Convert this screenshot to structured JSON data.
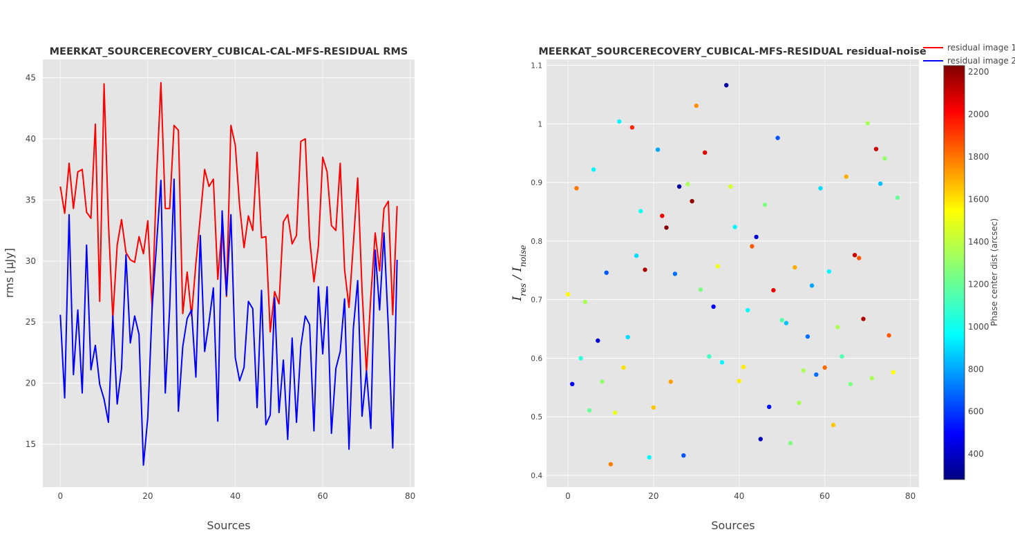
{
  "colors": {
    "series1": "#ff0000",
    "series2": "#0000ff",
    "plot_bg": "#e5e5e5",
    "grid": "#ffffff"
  },
  "legend": [
    "residual image 1",
    "residual image 2"
  ],
  "colorbar": {
    "title": "Phase center dist (arcsec)",
    "ticks": [
      "400",
      "600",
      "800",
      "1000",
      "1200",
      "1400",
      "1600",
      "1800",
      "2000",
      "2200"
    ]
  },
  "chart_data": [
    {
      "type": "line",
      "title": "MEERKAT_SOURCERECOVERY_CUBICAL-CAL-MFS-RESIDUAL RMS",
      "xlabel": "Sources",
      "ylabel": "rms [µJy]",
      "xlim": [
        -4,
        81
      ],
      "ylim": [
        11.5,
        46.5
      ],
      "xticks": [
        "0",
        "20",
        "40",
        "60",
        "80"
      ],
      "yticks": [
        "15",
        "20",
        "25",
        "30",
        "35",
        "40",
        "45"
      ],
      "grid": true,
      "x": [
        0,
        1,
        2,
        3,
        4,
        5,
        6,
        7,
        8,
        9,
        10,
        11,
        12,
        13,
        14,
        15,
        16,
        17,
        18,
        19,
        20,
        21,
        22,
        23,
        24,
        25,
        26,
        27,
        28,
        29,
        30,
        31,
        32,
        33,
        34,
        35,
        36,
        37,
        38,
        39,
        40,
        41,
        42,
        43,
        44,
        45,
        46,
        47,
        48,
        49,
        50,
        51,
        52,
        53,
        54,
        55,
        56,
        57,
        58,
        59,
        60,
        61,
        62,
        63,
        64,
        65,
        66,
        67,
        68,
        69,
        70,
        71,
        72,
        73,
        74,
        75,
        76,
        77
      ],
      "series": [
        {
          "name": "residual image 1",
          "values": [
            36.1,
            33.9,
            38.0,
            34.3,
            37.3,
            37.5,
            34.0,
            33.5,
            41.2,
            26.7,
            44.5,
            33.2,
            25.3,
            31.3,
            33.4,
            30.7,
            30.1,
            29.9,
            32.0,
            30.6,
            33.3,
            26.1,
            36.8,
            44.6,
            34.3,
            34.3,
            41.1,
            40.7,
            25.7,
            29.1,
            25.5,
            29.8,
            33.6,
            37.5,
            36.1,
            36.7,
            28.5,
            32.9,
            27.1,
            41.1,
            39.5,
            34.5,
            31.1,
            33.7,
            32.5,
            38.9,
            31.9,
            32.0,
            24.2,
            27.5,
            26.5,
            33.2,
            33.8,
            31.4,
            32.1,
            39.8,
            40.0,
            31.9,
            28.3,
            31.2,
            38.5,
            37.3,
            32.9,
            32.5,
            38.0,
            29.3,
            26.2,
            31.4,
            36.8,
            27.6,
            20.9,
            27.1,
            32.3,
            29.2,
            34.3,
            34.9,
            25.6,
            34.5
          ]
        },
        {
          "name": "residual image 2",
          "values": [
            25.6,
            18.8,
            33.8,
            20.7,
            26.0,
            19.2,
            31.3,
            21.1,
            23.1,
            19.9,
            18.7,
            16.8,
            25.5,
            18.3,
            21.2,
            30.5,
            23.3,
            25.5,
            24.0,
            13.3,
            17.2,
            26.2,
            31.4,
            36.6,
            19.2,
            26.2,
            36.7,
            17.7,
            23.0,
            25.3,
            26.0,
            20.5,
            32.1,
            22.6,
            25.0,
            27.8,
            16.9,
            34.1,
            27.2,
            33.8,
            22.1,
            20.2,
            21.3,
            26.7,
            26.1,
            18.0,
            27.6,
            16.6,
            17.4,
            27.0,
            17.6,
            21.9,
            15.4,
            23.7,
            16.8,
            23.0,
            25.5,
            24.8,
            16.1,
            27.9,
            22.4,
            27.9,
            15.9,
            21.2,
            22.6,
            26.9,
            14.6,
            24.5,
            28.4,
            17.3,
            21.0,
            16.3,
            30.9,
            26.0,
            32.3,
            24.6,
            14.7,
            30.1
          ]
        }
      ]
    },
    {
      "type": "scatter",
      "title": "MEERKAT_SOURCERECOVERY_CUBICAL-MFS-RESIDUAL residual-noise",
      "xlabel": "Sources",
      "ylabel": "I_res / I_noise",
      "xlim": [
        -5,
        82
      ],
      "ylim": [
        0.38,
        1.11
      ],
      "xticks": [
        "0",
        "20",
        "40",
        "60",
        "80"
      ],
      "yticks": [
        "0.4",
        "0.5",
        "0.6",
        "0.7",
        "0.8",
        "0.9",
        "1",
        "1.1"
      ],
      "grid": true,
      "color_scale": {
        "type": "jet",
        "cmin": 280,
        "cmax": 2230,
        "label": "Phase center dist (arcsec)"
      },
      "points": [
        {
          "x": 0,
          "y": 0.709,
          "c": 1560
        },
        {
          "x": 1,
          "y": 0.556,
          "c": 500
        },
        {
          "x": 2,
          "y": 0.89,
          "c": 1800
        },
        {
          "x": 3,
          "y": 0.6,
          "c": 1050
        },
        {
          "x": 4,
          "y": 0.696,
          "c": 1350
        },
        {
          "x": 5,
          "y": 0.511,
          "c": 1200
        },
        {
          "x": 6,
          "y": 0.922,
          "c": 950
        },
        {
          "x": 7,
          "y": 0.63,
          "c": 420
        },
        {
          "x": 8,
          "y": 0.56,
          "c": 1300
        },
        {
          "x": 9,
          "y": 0.746,
          "c": 650
        },
        {
          "x": 10,
          "y": 0.419,
          "c": 1780
        },
        {
          "x": 11,
          "y": 0.507,
          "c": 1500
        },
        {
          "x": 12,
          "y": 1.004,
          "c": 950
        },
        {
          "x": 13,
          "y": 0.584,
          "c": 1600
        },
        {
          "x": 14,
          "y": 0.636,
          "c": 900
        },
        {
          "x": 15,
          "y": 0.994,
          "c": 1950
        },
        {
          "x": 16,
          "y": 0.775,
          "c": 900
        },
        {
          "x": 17,
          "y": 0.851,
          "c": 1000
        },
        {
          "x": 18,
          "y": 0.751,
          "c": 2150
        },
        {
          "x": 19,
          "y": 0.431,
          "c": 950
        },
        {
          "x": 20,
          "y": 0.516,
          "c": 1650
        },
        {
          "x": 21,
          "y": 0.956,
          "c": 800
        },
        {
          "x": 22,
          "y": 0.843,
          "c": 2050
        },
        {
          "x": 23,
          "y": 0.823,
          "c": 2230
        },
        {
          "x": 24,
          "y": 0.56,
          "c": 1720
        },
        {
          "x": 25,
          "y": 0.744,
          "c": 700
        },
        {
          "x": 26,
          "y": 0.893,
          "c": 330
        },
        {
          "x": 27,
          "y": 0.434,
          "c": 650
        },
        {
          "x": 28,
          "y": 0.897,
          "c": 1350
        },
        {
          "x": 29,
          "y": 0.868,
          "c": 2200
        },
        {
          "x": 30,
          "y": 1.031,
          "c": 1750
        },
        {
          "x": 31,
          "y": 0.717,
          "c": 1250
        },
        {
          "x": 32,
          "y": 0.951,
          "c": 2050
        },
        {
          "x": 33,
          "y": 0.603,
          "c": 1100
        },
        {
          "x": 34,
          "y": 0.688,
          "c": 480
        },
        {
          "x": 35,
          "y": 0.757,
          "c": 1500
        },
        {
          "x": 36,
          "y": 0.593,
          "c": 950
        },
        {
          "x": 37,
          "y": 1.066,
          "c": 330
        },
        {
          "x": 38,
          "y": 0.893,
          "c": 1450
        },
        {
          "x": 39,
          "y": 0.824,
          "c": 950
        },
        {
          "x": 40,
          "y": 0.561,
          "c": 1580
        },
        {
          "x": 41,
          "y": 0.585,
          "c": 1580
        },
        {
          "x": 42,
          "y": 0.682,
          "c": 950
        },
        {
          "x": 43,
          "y": 0.791,
          "c": 1850
        },
        {
          "x": 44,
          "y": 0.807,
          "c": 420
        },
        {
          "x": 45,
          "y": 0.462,
          "c": 380
        },
        {
          "x": 46,
          "y": 0.862,
          "c": 1250
        },
        {
          "x": 47,
          "y": 0.517,
          "c": 520
        },
        {
          "x": 48,
          "y": 0.716,
          "c": 2050
        },
        {
          "x": 49,
          "y": 0.976,
          "c": 650
        },
        {
          "x": 50,
          "y": 0.665,
          "c": 1150
        },
        {
          "x": 51,
          "y": 0.66,
          "c": 850
        },
        {
          "x": 52,
          "y": 0.455,
          "c": 1250
        },
        {
          "x": 53,
          "y": 0.755,
          "c": 1700
        },
        {
          "x": 54,
          "y": 0.524,
          "c": 1350
        },
        {
          "x": 55,
          "y": 0.579,
          "c": 1350
        },
        {
          "x": 56,
          "y": 0.637,
          "c": 700
        },
        {
          "x": 57,
          "y": 0.724,
          "c": 800
        },
        {
          "x": 58,
          "y": 0.572,
          "c": 700
        },
        {
          "x": 59,
          "y": 0.89,
          "c": 900
        },
        {
          "x": 60,
          "y": 0.584,
          "c": 1820
        },
        {
          "x": 61,
          "y": 0.748,
          "c": 950
        },
        {
          "x": 62,
          "y": 0.486,
          "c": 1650
        },
        {
          "x": 63,
          "y": 0.653,
          "c": 1350
        },
        {
          "x": 64,
          "y": 0.603,
          "c": 1150
        },
        {
          "x": 65,
          "y": 0.91,
          "c": 1700
        },
        {
          "x": 66,
          "y": 0.556,
          "c": 1250
        },
        {
          "x": 67,
          "y": 0.776,
          "c": 2100
        },
        {
          "x": 68,
          "y": 0.771,
          "c": 1850
        },
        {
          "x": 69,
          "y": 0.667,
          "c": 2150
        },
        {
          "x": 70,
          "y": 1.001,
          "c": 1350
        },
        {
          "x": 71,
          "y": 0.566,
          "c": 1350
        },
        {
          "x": 72,
          "y": 0.957,
          "c": 2100
        },
        {
          "x": 73,
          "y": 0.898,
          "c": 850
        },
        {
          "x": 74,
          "y": 0.941,
          "c": 1300
        },
        {
          "x": 75,
          "y": 0.639,
          "c": 1850
        },
        {
          "x": 76,
          "y": 0.576,
          "c": 1550
        },
        {
          "x": 77,
          "y": 0.874,
          "c": 1200
        }
      ]
    }
  ]
}
